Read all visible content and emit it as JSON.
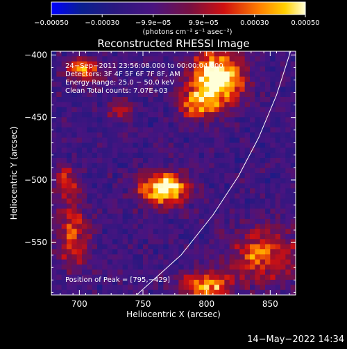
{
  "chart_data": {
    "type": "heatmap",
    "title": "Reconstructed RHESSI Image",
    "xlabel": "Heliocentric X (arcsec)",
    "ylabel": "Heliocentric Y (arcsec)",
    "xlim": [
      678,
      870
    ],
    "ylim": [
      -592,
      -397
    ],
    "xticks": [
      700,
      750,
      800,
      850
    ],
    "yticks": [
      -400,
      -450,
      -500,
      -550
    ],
    "colorbar": {
      "range": [
        -0.0005,
        0.0005
      ],
      "tick_values": [
        -0.0005,
        -0.0003,
        -9.9e-05,
        9.9e-05,
        0.0003,
        0.0005
      ],
      "tick_labels": [
        "−0.00050",
        "−0.00030",
        "−9.9e−05",
        "9.9e−05",
        "0.00030",
        "0.00050"
      ],
      "unit_label": "(photons cm⁻² s⁻¹ asec⁻²)"
    },
    "annotations": [
      "24−Sep−2011 23:56:08.000 to 00:00:04.000",
      "Detectors: 3F 4F 5F 6F 7F 8F, AM",
      "Energy Range: 25.0 − 50.0 keV",
      "Clean     Total counts: 7.07E+03"
    ],
    "peak": {
      "label": "Position of Peak = [795,−429]",
      "x": 795,
      "y": -429
    },
    "limb": [
      [
        745,
        -592
      ],
      [
        780,
        -560
      ],
      [
        805,
        -528
      ],
      [
        825,
        -497
      ],
      [
        841,
        -466
      ],
      [
        855,
        -432
      ],
      [
        866,
        -397
      ]
    ],
    "sources": [
      {
        "x": 808,
        "y": -418,
        "sx": 20,
        "sy": 22,
        "amp": 1.0
      },
      {
        "x": 792,
        "y": -440,
        "sx": 15,
        "sy": 12,
        "amp": 0.55
      },
      {
        "x": 767,
        "y": -507,
        "sx": 19,
        "sy": 13,
        "amp": 0.95
      },
      {
        "x": 800,
        "y": -584,
        "sx": 20,
        "sy": 10,
        "amp": 0.75
      },
      {
        "x": 845,
        "y": -560,
        "sx": 28,
        "sy": 22,
        "amp": 0.55
      },
      {
        "x": 695,
        "y": -542,
        "sx": 12,
        "sy": 28,
        "amp": 0.5
      },
      {
        "x": 703,
        "y": -412,
        "sx": 14,
        "sy": 10,
        "amp": 0.6
      },
      {
        "x": 690,
        "y": -500,
        "sx": 10,
        "sy": 12,
        "amp": 0.45
      },
      {
        "x": 732,
        "y": -445,
        "sx": 10,
        "sy": 8,
        "amp": 0.4
      }
    ]
  },
  "footer": {
    "timestamp": "14−May−2022 14:34"
  }
}
